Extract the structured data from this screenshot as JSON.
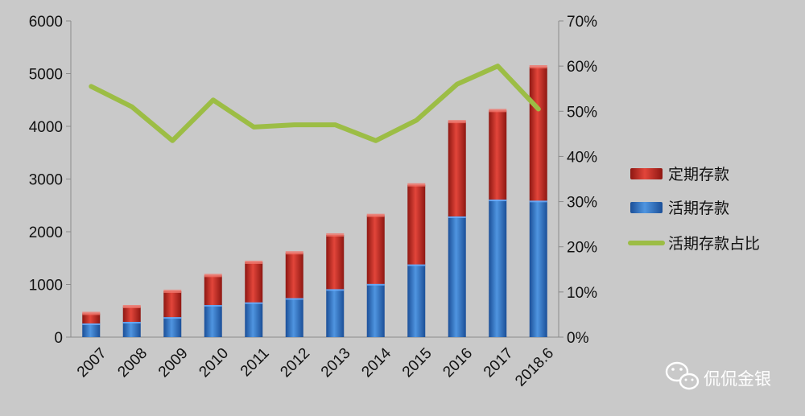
{
  "chart_data": {
    "type": "bar",
    "stacked": true,
    "categories": [
      "2007",
      "2008",
      "2009",
      "2010",
      "2011",
      "2012",
      "2013",
      "2014",
      "2015",
      "2016",
      "2017",
      "2018.6"
    ],
    "series": [
      {
        "name": "活期存款",
        "type": "bar",
        "axis": "left",
        "color": "#2f74c8",
        "values": [
          260,
          290,
          380,
          610,
          660,
          740,
          910,
          1010,
          1380,
          2290,
          2610,
          2590
        ]
      },
      {
        "name": "定期存款",
        "type": "bar",
        "axis": "left",
        "color": "#c8281f",
        "values": [
          190,
          290,
          490,
          560,
          760,
          860,
          1030,
          1300,
          1510,
          1800,
          1690,
          2540
        ]
      },
      {
        "name": "活期存款占比",
        "type": "line",
        "axis": "right",
        "color": "#9cbd45",
        "values": [
          55.5,
          51,
          43.5,
          52.5,
          46.5,
          47,
          47,
          43.5,
          48,
          56,
          60,
          50.5
        ]
      }
    ],
    "y_left": {
      "min": 0,
      "max": 6000,
      "ticks": [
        "0",
        "1000",
        "2000",
        "3000",
        "4000",
        "5000",
        "6000"
      ]
    },
    "y_right": {
      "min": 0,
      "max": 70,
      "ticks": [
        "0%",
        "10%",
        "20%",
        "30%",
        "40%",
        "50%",
        "60%",
        "70%"
      ]
    },
    "grid": false,
    "legend": {
      "placement": "right",
      "entries": [
        {
          "label": "定期存款",
          "color": "#c8281f",
          "kind": "bar"
        },
        {
          "label": "活期存款",
          "color": "#2f74c8",
          "kind": "bar"
        },
        {
          "label": "活期存款占比",
          "color": "#9cbd45",
          "kind": "line"
        }
      ]
    }
  },
  "watermark": {
    "text": "侃侃金银",
    "icon": "wechat-icon"
  }
}
